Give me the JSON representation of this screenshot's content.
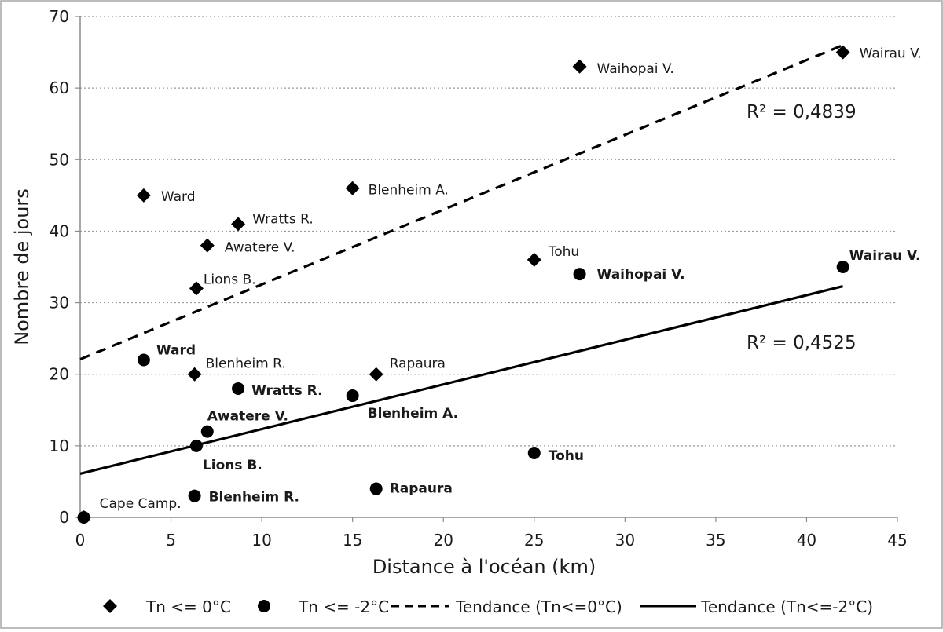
{
  "chart_data": {
    "type": "scatter",
    "title": "",
    "xlabel": "Distance à l'océan (km)",
    "ylabel": "Nombre de jours",
    "xlim": [
      0,
      45
    ],
    "ylim": [
      0,
      70
    ],
    "xticks": [
      0,
      5,
      10,
      15,
      20,
      25,
      30,
      35,
      40,
      45
    ],
    "yticks": [
      0,
      10,
      20,
      30,
      40,
      50,
      60,
      70
    ],
    "grid": "horizontal dotted",
    "legend_position": "bottom",
    "series": [
      {
        "name": "Tn <= 0°C",
        "marker": "diamond",
        "points": [
          {
            "label": "Cape Camp.",
            "x": 0.2,
            "y": 0
          },
          {
            "label": "Ward",
            "x": 3.5,
            "y": 45
          },
          {
            "label": "Lions B.",
            "x": 6.4,
            "y": 32
          },
          {
            "label": "Blenheim R.",
            "x": 6.3,
            "y": 20
          },
          {
            "label": "Awatere V.",
            "x": 7.0,
            "y": 38
          },
          {
            "label": "Wratts R.",
            "x": 8.7,
            "y": 41
          },
          {
            "label": "Blenheim A.",
            "x": 15.0,
            "y": 46
          },
          {
            "label": "Rapaura",
            "x": 16.3,
            "y": 20
          },
          {
            "label": "Tohu",
            "x": 25.0,
            "y": 36
          },
          {
            "label": "Waihopai V.",
            "x": 27.5,
            "y": 63
          },
          {
            "label": "Wairau V.",
            "x": 42.0,
            "y": 65
          }
        ]
      },
      {
        "name": "Tn <= -2°C",
        "marker": "circle",
        "points": [
          {
            "label": "",
            "x": 0.2,
            "y": 0
          },
          {
            "label": "Ward",
            "x": 3.5,
            "y": 22
          },
          {
            "label": "Lions B.",
            "x": 6.4,
            "y": 10
          },
          {
            "label": "Blenheim R.",
            "x": 6.3,
            "y": 3
          },
          {
            "label": "Awatere V.",
            "x": 7.0,
            "y": 12
          },
          {
            "label": "Wratts R.",
            "x": 8.7,
            "y": 18
          },
          {
            "label": "Blenheim A.",
            "x": 15.0,
            "y": 17
          },
          {
            "label": "Rapaura",
            "x": 16.3,
            "y": 4
          },
          {
            "label": "Tohu",
            "x": 25.0,
            "y": 9
          },
          {
            "label": "Waihopai V.",
            "x": 27.5,
            "y": 34
          },
          {
            "label": "Wairau V.",
            "x": 42.0,
            "y": 35
          }
        ]
      }
    ],
    "trendlines": [
      {
        "name": "Tendance (Tn<=0°C)",
        "style": "dashed",
        "x_start": 0,
        "y_start": 22.1,
        "x_end": 42,
        "y_end": 66,
        "r2_label": "R² = 0,4839"
      },
      {
        "name": "Tendance (Tn<=-2°C)",
        "style": "solid",
        "x_start": 0,
        "y_start": 6.1,
        "x_end": 42,
        "y_end": 32.3,
        "r2_label": "R² = 0,4525"
      }
    ]
  }
}
